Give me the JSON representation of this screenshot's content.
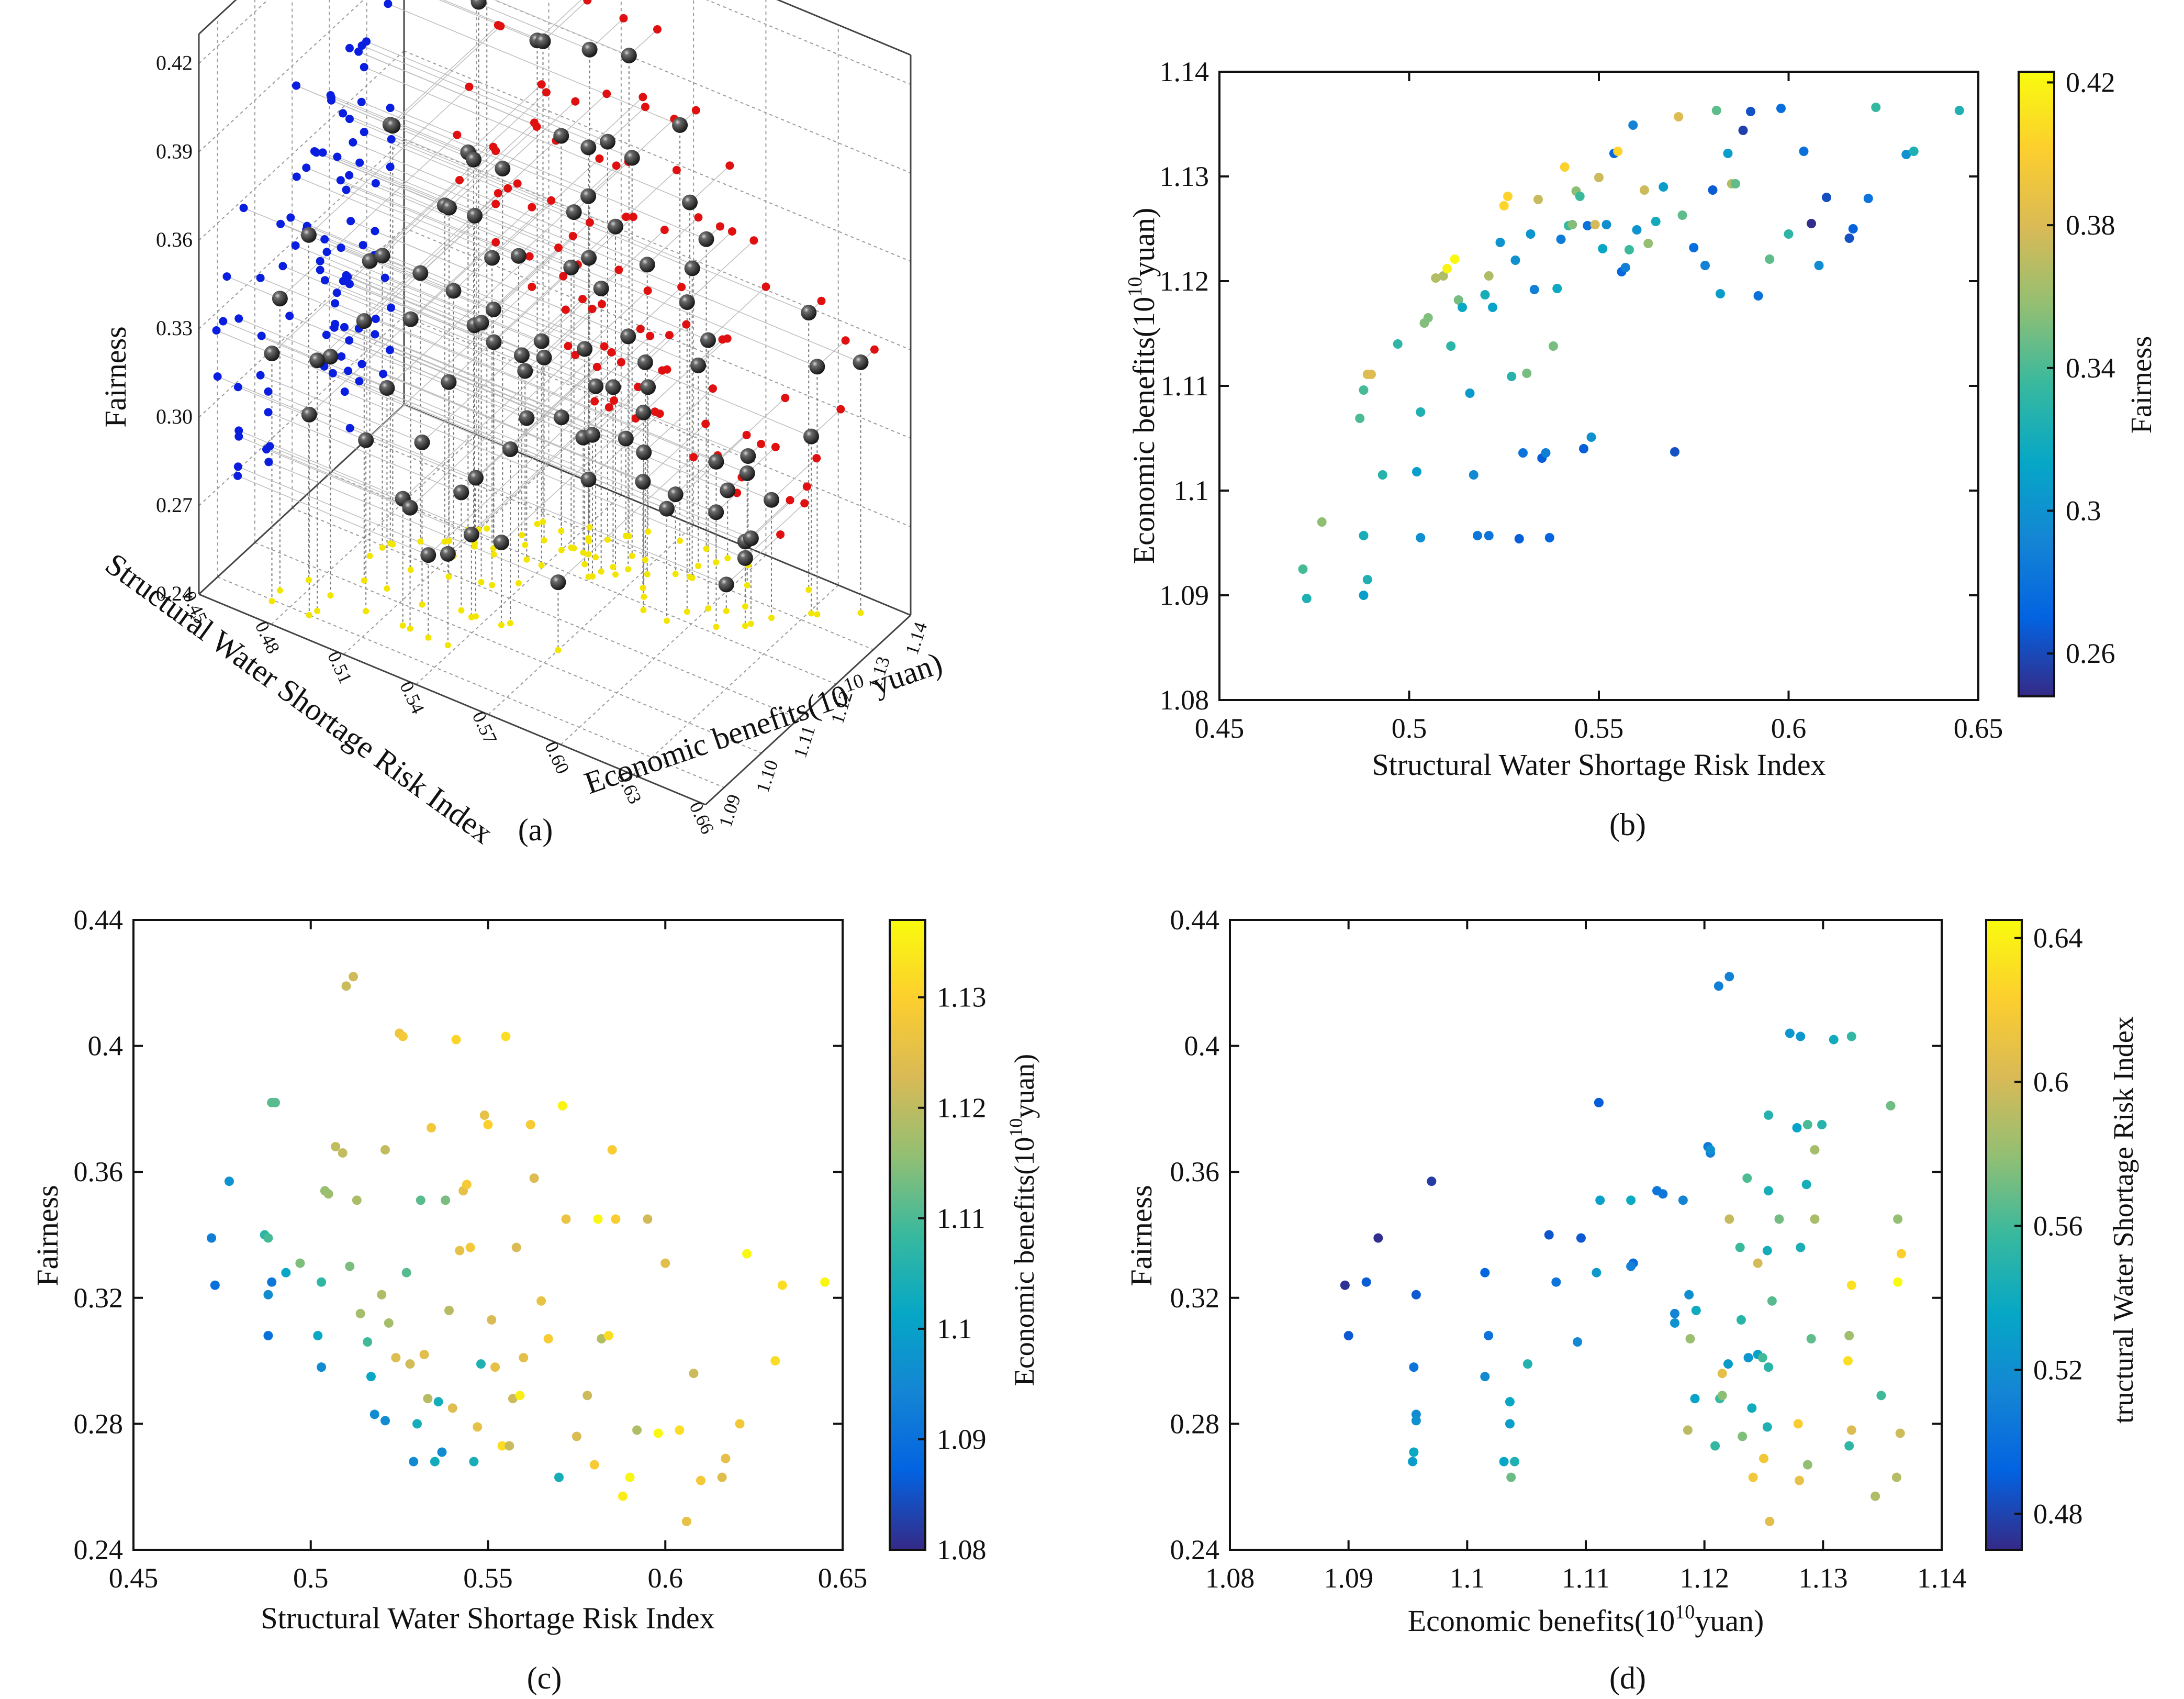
{
  "chart_data": [
    {
      "panel": "(a)",
      "type": "scatter",
      "title": "",
      "xlabel": "Structural Water Shortage Risk Index",
      "ylabel": "Economic benefits(10",
      "ylabel_exp": "10",
      "ylabel_unit": " yuan)",
      "zlabel": "Fairness",
      "xticks": [
        "0.45",
        "0.48",
        "0.51",
        "0.54",
        "0.57",
        "0.60",
        "0.63",
        "0.66"
      ],
      "yticks": [
        "1.09",
        "1.10",
        "1.11",
        "1.12",
        "1.13",
        "1.14"
      ],
      "zticks": [
        "0.24",
        "0.27",
        "0.30",
        "0.33",
        "0.36",
        "0.39",
        "0.42"
      ],
      "xlim": [
        0.45,
        0.66
      ],
      "ylim": [
        1.085,
        1.14
      ],
      "zlim": [
        0.24,
        0.43
      ],
      "grid": true,
      "marker_colors": {
        "points": "#2b2b2b",
        "x_projection": "#0a1ee0",
        "y_projection": "#e01010",
        "floor_projection": "#f2e600"
      }
    },
    {
      "panel": "(b)",
      "type": "scatter",
      "title": "",
      "xlabel": "Structural Water Shortage Risk Index",
      "ylabel": "Economic benefits(10",
      "ylabel_exp": "10",
      "ylabel_unit": "yuan)",
      "colorbar_label": "Fairness",
      "colorbar_ticks": [
        "0.26",
        "0.3",
        "0.34",
        "0.38",
        "0.42"
      ],
      "colorbar_range": [
        0.248,
        0.423
      ],
      "xticks": [
        "0.45",
        "0.5",
        "0.55",
        "0.6",
        "0.65"
      ],
      "yticks": [
        "1.08",
        "1.09",
        "1.1",
        "1.11",
        "1.12",
        "1.13",
        "1.14"
      ],
      "xlim": [
        0.45,
        0.65
      ],
      "ylim": [
        1.08,
        1.14
      ],
      "colormap": "parula"
    },
    {
      "panel": "(c)",
      "type": "scatter",
      "title": "",
      "xlabel": "Structural Water Shortage Risk Index",
      "ylabel": "Fairness",
      "colorbar_label": "Economic benefits(10",
      "colorbar_label_exp": "10",
      "colorbar_label_unit": "yuan)",
      "colorbar_ticks": [
        "1.08",
        "1.09",
        "1.1",
        "1.11",
        "1.12",
        "1.13"
      ],
      "colorbar_range": [
        1.08,
        1.137
      ],
      "xticks": [
        "0.45",
        "0.5",
        "0.55",
        "0.6",
        "0.65"
      ],
      "yticks": [
        "0.24",
        "0.28",
        "0.32",
        "0.36",
        "0.4",
        "0.44"
      ],
      "xlim": [
        0.45,
        0.65
      ],
      "ylim": [
        0.24,
        0.44
      ],
      "colormap": "parula"
    },
    {
      "panel": "(d)",
      "type": "scatter",
      "title": "",
      "xlabel": "Economic benefits(10",
      "xlabel_exp": "10",
      "xlabel_unit": "yuan)",
      "ylabel": "Fairness",
      "colorbar_label": "tructural Water Shortage Risk Index",
      "colorbar_ticks": [
        "0.48",
        "0.52",
        "0.56",
        "0.6",
        "0.64"
      ],
      "colorbar_range": [
        0.47,
        0.645
      ],
      "xticks": [
        "1.08",
        "1.09",
        "1.1",
        "1.11",
        "1.12",
        "1.13",
        "1.14"
      ],
      "yticks": [
        "0.24",
        "0.28",
        "0.32",
        "0.36",
        "0.4",
        "0.44"
      ],
      "xlim": [
        1.08,
        1.14
      ],
      "ylim": [
        0.24,
        0.44
      ],
      "colormap": "parula"
    }
  ],
  "points": [
    [
      0.472,
      1.0925,
      0.339
    ],
    [
      0.473,
      1.0897,
      0.324
    ],
    [
      0.477,
      1.097,
      0.357
    ],
    [
      0.487,
      1.1069,
      0.34
    ],
    [
      0.488,
      1.1096,
      0.339
    ],
    [
      0.488,
      1.09,
      0.308
    ],
    [
      0.488,
      1.0957,
      0.321
    ],
    [
      0.489,
      1.1111,
      0.382
    ],
    [
      0.49,
      1.1111,
      0.382
    ],
    [
      0.489,
      1.0915,
      0.325
    ],
    [
      0.493,
      1.1015,
      0.328
    ],
    [
      0.497,
      1.114,
      0.331
    ],
    [
      0.502,
      1.1018,
      0.308
    ],
    [
      0.503,
      1.1075,
      0.325
    ],
    [
      0.503,
      1.0955,
      0.298
    ],
    [
      0.504,
      1.116,
      0.354
    ],
    [
      0.505,
      1.1165,
      0.353
    ],
    [
      0.507,
      1.1203,
      0.368
    ],
    [
      0.509,
      1.1205,
      0.366
    ],
    [
      0.51,
      1.1212,
      0.419
    ],
    [
      0.512,
      1.1221,
      0.422
    ],
    [
      0.513,
      1.1182,
      0.351
    ],
    [
      0.511,
      1.1138,
      0.33
    ],
    [
      0.514,
      1.1175,
      0.315
    ],
    [
      0.516,
      1.1093,
      0.306
    ],
    [
      0.517,
      1.1015,
      0.295
    ],
    [
      0.518,
      1.0957,
      0.283
    ],
    [
      0.52,
      1.1187,
      0.321
    ],
    [
      0.521,
      1.1205,
      0.367
    ],
    [
      0.521,
      1.0957,
      0.281
    ],
    [
      0.522,
      1.1175,
      0.312
    ],
    [
      0.524,
      1.1237,
      0.301
    ],
    [
      0.525,
      1.1272,
      0.404
    ],
    [
      0.526,
      1.1281,
      0.403
    ],
    [
      0.527,
      1.1109,
      0.328
    ],
    [
      0.528,
      1.122,
      0.299
    ],
    [
      0.529,
      1.0954,
      0.268
    ],
    [
      0.53,
      1.1036,
      0.28
    ],
    [
      0.531,
      1.1112,
      0.351
    ],
    [
      0.532,
      1.1245,
      0.302
    ],
    [
      0.533,
      1.1192,
      0.288
    ],
    [
      0.534,
      1.1278,
      0.374
    ],
    [
      0.535,
      1.1031,
      0.268
    ],
    [
      0.536,
      1.1036,
      0.287
    ],
    [
      0.537,
      1.0955,
      0.271
    ],
    [
      0.538,
      1.1138,
      0.351
    ],
    [
      0.539,
      1.1193,
      0.316
    ],
    [
      0.54,
      1.124,
      0.285
    ],
    [
      0.541,
      1.1309,
      0.402
    ],
    [
      0.542,
      1.1253,
      0.335
    ],
    [
      0.543,
      1.1254,
      0.354
    ],
    [
      0.544,
      1.1286,
      0.356
    ],
    [
      0.545,
      1.1281,
      0.336
    ],
    [
      0.546,
      1.104,
      0.268
    ],
    [
      0.547,
      1.1253,
      0.279
    ],
    [
      0.548,
      1.1051,
      0.299
    ],
    [
      0.549,
      1.1254,
      0.378
    ],
    [
      0.55,
      1.1299,
      0.375
    ],
    [
      0.551,
      1.1231,
      0.313
    ],
    [
      0.552,
      1.1254,
      0.298
    ],
    [
      0.554,
      1.1322,
      0.273
    ],
    [
      0.555,
      1.1324,
      0.403
    ],
    [
      0.556,
      1.1209,
      0.273
    ],
    [
      0.557,
      1.1213,
      0.288
    ],
    [
      0.558,
      1.123,
      0.336
    ],
    [
      0.559,
      1.1349,
      0.289
    ],
    [
      0.56,
      1.1249,
      0.301
    ],
    [
      0.562,
      1.1287,
      0.375
    ],
    [
      0.563,
      1.1236,
      0.358
    ],
    [
      0.565,
      1.1257,
      0.319
    ],
    [
      0.567,
      1.129,
      0.307
    ],
    [
      0.57,
      1.1037,
      0.263
    ],
    [
      0.571,
      1.1357,
      0.381
    ],
    [
      0.572,
      1.1263,
      0.345
    ],
    [
      0.575,
      1.1232,
      0.276
    ],
    [
      0.578,
      1.1215,
      0.289
    ],
    [
      0.58,
      1.1287,
      0.267
    ],
    [
      0.581,
      1.1363,
      0.345
    ],
    [
      0.582,
      1.1188,
      0.307
    ],
    [
      0.584,
      1.1322,
      0.308
    ],
    [
      0.585,
      1.1293,
      0.367
    ],
    [
      0.586,
      1.1293,
      0.345
    ],
    [
      0.588,
      1.1344,
      0.257
    ],
    [
      0.59,
      1.1362,
      0.263
    ],
    [
      0.592,
      1.1186,
      0.278
    ],
    [
      0.595,
      1.1221,
      0.345
    ],
    [
      0.598,
      1.1365,
      0.277
    ],
    [
      0.6,
      1.1245,
      0.331
    ],
    [
      0.604,
      1.1324,
      0.278
    ],
    [
      0.606,
      1.1255,
      0.249
    ],
    [
      0.608,
      1.1215,
      0.296
    ],
    [
      0.61,
      1.128,
      0.262
    ],
    [
      0.616,
      1.1241,
      0.263
    ],
    [
      0.617,
      1.125,
      0.269
    ],
    [
      0.621,
      1.1279,
      0.28
    ],
    [
      0.623,
      1.1366,
      0.334
    ],
    [
      0.631,
      1.1321,
      0.3
    ],
    [
      0.633,
      1.1324,
      0.324
    ],
    [
      0.645,
      1.1363,
      0.325
    ]
  ]
}
